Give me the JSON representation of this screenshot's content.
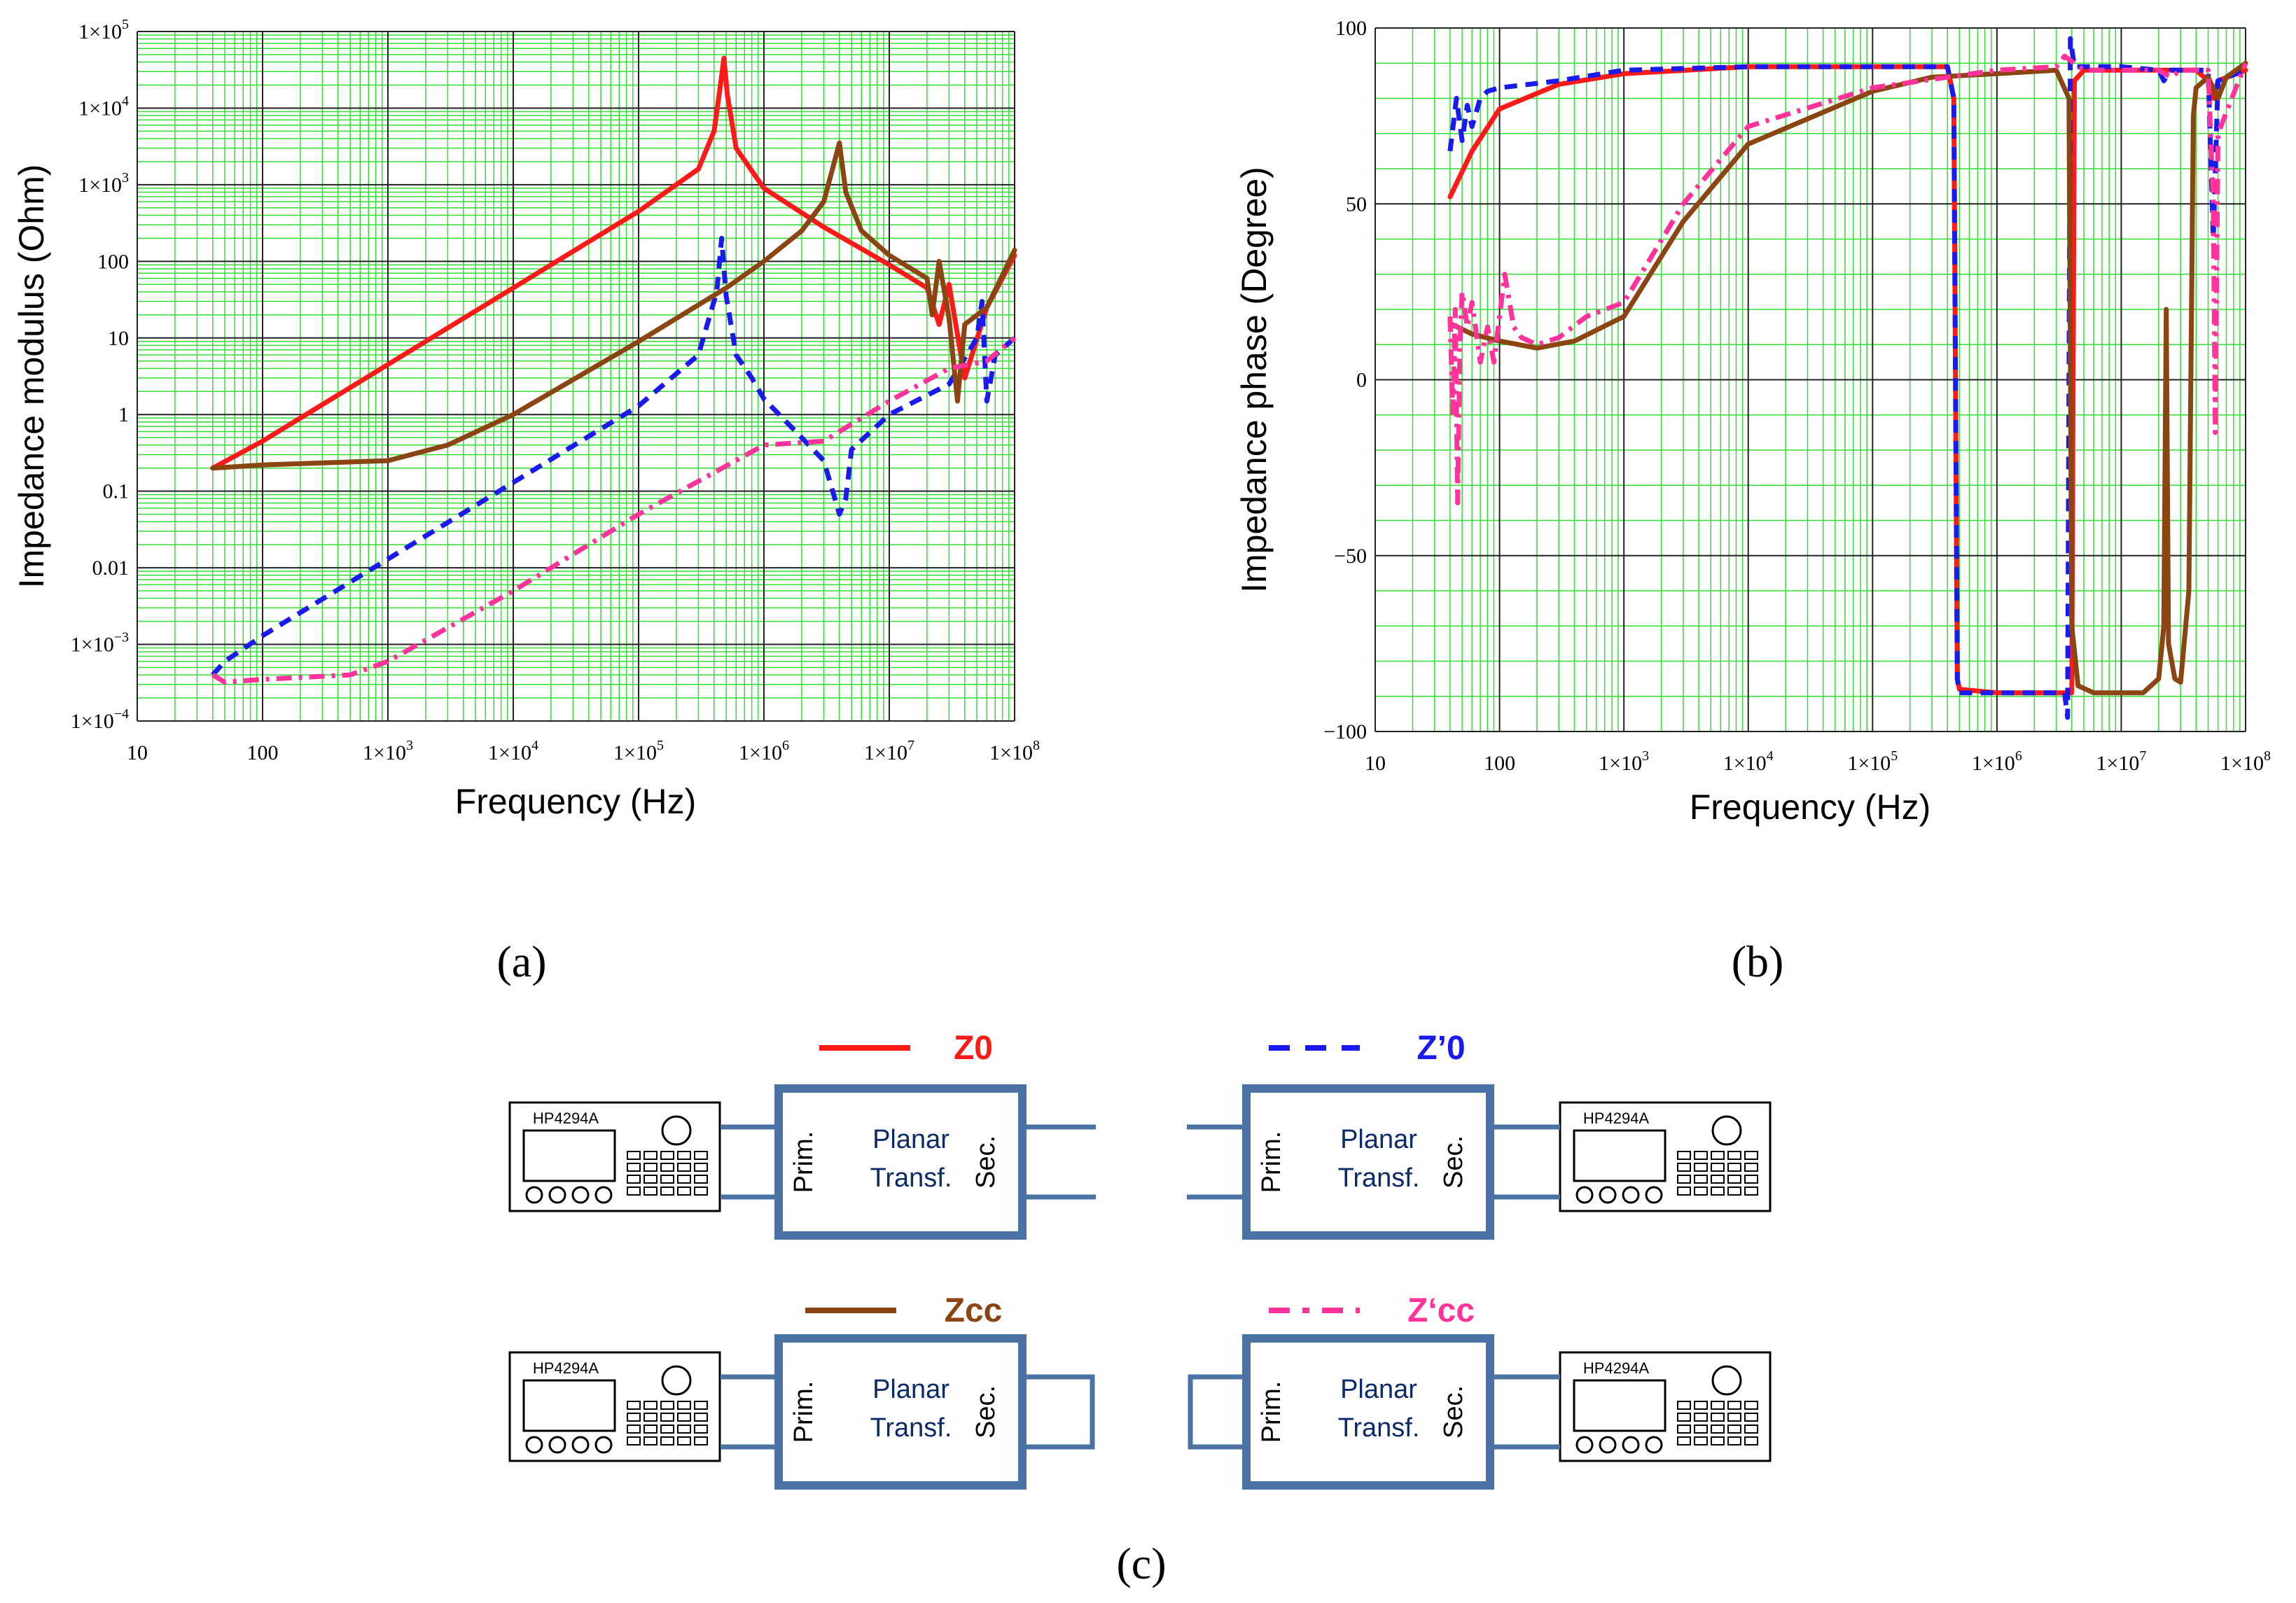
{
  "chart_data": [
    {
      "id": "a",
      "type": "line",
      "panel_label": "(a)",
      "xlabel": "Frequency (Hz)",
      "ylabel": "Impedance modulus (Ohm)",
      "xscale": "log",
      "yscale": "log",
      "xlim": [
        10,
        100000000
      ],
      "ylim": [
        0.0001,
        100000
      ],
      "x_ticks": [
        {
          "value": 10,
          "label": "10"
        },
        {
          "value": 100,
          "label": "100"
        },
        {
          "value": 1000,
          "label": "1×10",
          "sup": "3"
        },
        {
          "value": 10000,
          "label": "1×10",
          "sup": "4"
        },
        {
          "value": 100000,
          "label": "1×10",
          "sup": "5"
        },
        {
          "value": 1000000,
          "label": "1×10",
          "sup": "6"
        },
        {
          "value": 10000000,
          "label": "1×10",
          "sup": "7"
        },
        {
          "value": 100000000,
          "label": "1×10",
          "sup": "8"
        }
      ],
      "y_ticks": [
        {
          "value": 100000,
          "label": "1×10",
          "sup": "5"
        },
        {
          "value": 10000,
          "label": "1×10",
          "sup": "4"
        },
        {
          "value": 1000,
          "label": "1×10",
          "sup": "3"
        },
        {
          "value": 100,
          "label": "100"
        },
        {
          "value": 10,
          "label": "10"
        },
        {
          "value": 1,
          "label": "1"
        },
        {
          "value": 0.1,
          "label": "0.1"
        },
        {
          "value": 0.01,
          "label": "0.01"
        },
        {
          "value": 0.001,
          "label": "1×10",
          "sup": "−3"
        },
        {
          "value": 0.0001,
          "label": "1×10",
          "sup": "−4"
        }
      ],
      "series": [
        {
          "name": "Z0",
          "color": "#ff1a1a",
          "dash": "solid",
          "points": [
            [
              40,
              0.2
            ],
            [
              100,
              0.45
            ],
            [
              1000,
              4.5
            ],
            [
              10000,
              45
            ],
            [
              100000,
              450
            ],
            [
              300000,
              1600
            ],
            [
              400000,
              5000
            ],
            [
              450000,
              20000
            ],
            [
              480000,
              45000
            ],
            [
              510000,
              15000
            ],
            [
              600000,
              3000
            ],
            [
              1000000,
              900
            ],
            [
              3000000,
              280
            ],
            [
              10000000,
              90
            ],
            [
              20000000,
              45
            ],
            [
              25000000,
              15
            ],
            [
              30000000,
              50
            ],
            [
              40000000,
              3
            ],
            [
              60000000,
              25
            ],
            [
              100000000,
              120
            ]
          ]
        },
        {
          "name": "Z'0",
          "color": "#1a1aee",
          "dash": "dashed",
          "points": [
            [
              40,
              0.0004
            ],
            [
              50,
              0.0006
            ],
            [
              100,
              0.0013
            ],
            [
              1000,
              0.013
            ],
            [
              10000,
              0.13
            ],
            [
              100000,
              1.3
            ],
            [
              300000,
              6
            ],
            [
              420000,
              40
            ],
            [
              460000,
              200
            ],
            [
              500000,
              35
            ],
            [
              600000,
              6
            ],
            [
              800000,
              3
            ],
            [
              1000000,
              1.6
            ],
            [
              2000000,
              0.5
            ],
            [
              3000000,
              0.25
            ],
            [
              4000000,
              0.05
            ],
            [
              4500000,
              0.08
            ],
            [
              5000000,
              0.35
            ],
            [
              10000000,
              1
            ],
            [
              30000000,
              2.5
            ],
            [
              50000000,
              10
            ],
            [
              55000000,
              30
            ],
            [
              60000000,
              1.5
            ],
            [
              70000000,
              6
            ],
            [
              100000000,
              10
            ]
          ]
        },
        {
          "name": "Zcc",
          "color": "#8b4513",
          "dash": "solid",
          "points": [
            [
              40,
              0.2
            ],
            [
              100,
              0.22
            ],
            [
              1000,
              0.25
            ],
            [
              3000,
              0.4
            ],
            [
              10000,
              1
            ],
            [
              100000,
              9
            ],
            [
              500000,
              45
            ],
            [
              1000000,
              100
            ],
            [
              2000000,
              250
            ],
            [
              3000000,
              600
            ],
            [
              4000000,
              3500
            ],
            [
              4500000,
              800
            ],
            [
              6000000,
              250
            ],
            [
              10000000,
              120
            ],
            [
              20000000,
              60
            ],
            [
              22000000,
              20
            ],
            [
              25000000,
              100
            ],
            [
              30000000,
              18
            ],
            [
              35000000,
              1.5
            ],
            [
              40000000,
              15
            ],
            [
              60000000,
              25
            ],
            [
              100000000,
              140
            ]
          ]
        },
        {
          "name": "Z'cc",
          "color": "#ff3399",
          "dash": "dashdot",
          "points": [
            [
              40,
              0.0004
            ],
            [
              50,
              0.00032
            ],
            [
              100,
              0.00035
            ],
            [
              500,
              0.0004
            ],
            [
              1000,
              0.0006
            ],
            [
              10000,
              0.005
            ],
            [
              100000,
              0.05
            ],
            [
              1000000,
              0.4
            ],
            [
              3000000,
              0.45
            ],
            [
              10000000,
              1.5
            ],
            [
              30000000,
              4
            ],
            [
              60000000,
              5
            ],
            [
              100000000,
              10
            ]
          ]
        }
      ]
    },
    {
      "id": "b",
      "type": "line",
      "panel_label": "(b)",
      "xlabel": "Frequency (Hz)",
      "ylabel": "Impedance phase (Degree)",
      "xscale": "log",
      "yscale": "linear",
      "xlim": [
        10,
        100000000
      ],
      "ylim": [
        -100,
        100
      ],
      "x_ticks": [
        {
          "value": 10,
          "label": "10"
        },
        {
          "value": 100,
          "label": "100"
        },
        {
          "value": 1000,
          "label": "1×10",
          "sup": "3"
        },
        {
          "value": 10000,
          "label": "1×10",
          "sup": "4"
        },
        {
          "value": 100000,
          "label": "1×10",
          "sup": "5"
        },
        {
          "value": 1000000,
          "label": "1×10",
          "sup": "6"
        },
        {
          "value": 10000000,
          "label": "1×10",
          "sup": "7"
        },
        {
          "value": 100000000,
          "label": "1×10",
          "sup": "8"
        }
      ],
      "y_ticks": [
        {
          "value": 100,
          "label": "100"
        },
        {
          "value": 50,
          "label": "50"
        },
        {
          "value": 0,
          "label": "0"
        },
        {
          "value": -50,
          "label": "−50"
        },
        {
          "value": -100,
          "label": "−100"
        }
      ],
      "series": [
        {
          "name": "Z0",
          "color": "#ff1a1a",
          "dash": "solid",
          "points": [
            [
              40,
              52
            ],
            [
              60,
              65
            ],
            [
              100,
              77
            ],
            [
              300,
              84
            ],
            [
              1000,
              87
            ],
            [
              10000,
              89
            ],
            [
              100000,
              89
            ],
            [
              400000,
              89
            ],
            [
              450000,
              80
            ],
            [
              480000,
              -85
            ],
            [
              500000,
              -88
            ],
            [
              1000000,
              -89
            ],
            [
              3000000,
              -89
            ],
            [
              4000000,
              -89
            ],
            [
              4200000,
              85
            ],
            [
              5000000,
              88
            ],
            [
              20000000,
              88
            ],
            [
              40000000,
              88
            ],
            [
              50000000,
              85
            ],
            [
              55000000,
              80
            ],
            [
              60000000,
              85
            ],
            [
              100000000,
              88
            ]
          ]
        },
        {
          "name": "Z'0",
          "color": "#1a1aee",
          "dash": "dashed",
          "points": [
            [
              40,
              65
            ],
            [
              45,
              80
            ],
            [
              50,
              68
            ],
            [
              55,
              78
            ],
            [
              60,
              72
            ],
            [
              70,
              80
            ],
            [
              80,
              82
            ],
            [
              100,
              83
            ],
            [
              300,
              85
            ],
            [
              1000,
              88
            ],
            [
              10000,
              89
            ],
            [
              100000,
              89
            ],
            [
              400000,
              89
            ],
            [
              450000,
              80
            ],
            [
              480000,
              -85
            ],
            [
              500000,
              -89
            ],
            [
              1000000,
              -89
            ],
            [
              3500000,
              -89
            ],
            [
              3700000,
              -96
            ],
            [
              3900000,
              97
            ],
            [
              4200000,
              89
            ],
            [
              10000000,
              89
            ],
            [
              20000000,
              88
            ],
            [
              22000000,
              85
            ],
            [
              25000000,
              88
            ],
            [
              50000000,
              88
            ],
            [
              55000000,
              40
            ],
            [
              60000000,
              85
            ],
            [
              100000000,
              88
            ]
          ]
        },
        {
          "name": "Zcc",
          "color": "#8b4513",
          "dash": "solid",
          "points": [
            [
              40,
              16
            ],
            [
              60,
              13
            ],
            [
              100,
              11
            ],
            [
              200,
              9
            ],
            [
              400,
              11
            ],
            [
              1000,
              18
            ],
            [
              3000,
              45
            ],
            [
              10000,
              67
            ],
            [
              100000,
              82
            ],
            [
              300000,
              86
            ],
            [
              1000000,
              87
            ],
            [
              3000000,
              88
            ],
            [
              3800000,
              80
            ],
            [
              4000000,
              -70
            ],
            [
              4500000,
              -87
            ],
            [
              6000000,
              -89
            ],
            [
              15000000,
              -89
            ],
            [
              20000000,
              -85
            ],
            [
              22000000,
              -70
            ],
            [
              23000000,
              20
            ],
            [
              24000000,
              -75
            ],
            [
              27000000,
              -85
            ],
            [
              30000000,
              -86
            ],
            [
              35000000,
              -60
            ],
            [
              38000000,
              75
            ],
            [
              40000000,
              83
            ],
            [
              50000000,
              86
            ],
            [
              60000000,
              80
            ],
            [
              70000000,
              86
            ],
            [
              100000000,
              90
            ]
          ]
        },
        {
          "name": "Z'cc",
          "color": "#ff3399",
          "dash": "dashdot",
          "points": [
            [
              40,
              18
            ],
            [
              42,
              -10
            ],
            [
              44,
              20
            ],
            [
              46,
              -35
            ],
            [
              48,
              10
            ],
            [
              50,
              25
            ],
            [
              55,
              15
            ],
            [
              60,
              22
            ],
            [
              70,
              5
            ],
            [
              80,
              15
            ],
            [
              90,
              5
            ],
            [
              100,
              18
            ],
            [
              110,
              30
            ],
            [
              130,
              15
            ],
            [
              150,
              12
            ],
            [
              200,
              10
            ],
            [
              300,
              12
            ],
            [
              500,
              18
            ],
            [
              1000,
              22
            ],
            [
              3000,
              50
            ],
            [
              10000,
              72
            ],
            [
              100000,
              83
            ],
            [
              1000000,
              88
            ],
            [
              3000000,
              89
            ],
            [
              3500000,
              92
            ],
            [
              5000000,
              88
            ],
            [
              20000000,
              88
            ],
            [
              25000000,
              86
            ],
            [
              30000000,
              88
            ],
            [
              50000000,
              88
            ],
            [
              55000000,
              50
            ],
            [
              57000000,
              -15
            ],
            [
              60000000,
              70
            ],
            [
              100000000,
              90
            ]
          ]
        }
      ]
    }
  ],
  "diagram": {
    "panel_label": "(c)",
    "device_label": "HP4294A",
    "transformer": {
      "line1": "Planar",
      "line2": "Transf.",
      "primary": "Prim.",
      "secondary": "Sec."
    },
    "configs": [
      {
        "name": "Z0",
        "color": "#ff1a1a",
        "dash": "solid",
        "primary_side": "left",
        "secondary": "open"
      },
      {
        "name": "Z’0",
        "color": "#1a1aee",
        "dash": "dashed",
        "primary_side": "right",
        "secondary": "open"
      },
      {
        "name": "Zcc",
        "color": "#8b4513",
        "dash": "solid",
        "primary_side": "left",
        "secondary": "short"
      },
      {
        "name": "Z‘cc",
        "color": "#ff3399",
        "dash": "dashdot",
        "primary_side": "right",
        "secondary": "short"
      }
    ]
  }
}
